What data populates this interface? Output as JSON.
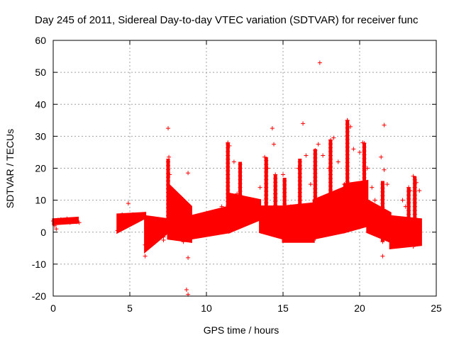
{
  "chart_data": {
    "type": "scatter",
    "title": "Day 245 of 2011, Sidereal Day-to-day VTEC variation (SDTVAR) for receiver func",
    "xlabel": "GPS time / hours",
    "ylabel": "SDTVAR / TECUs",
    "xlim": [
      0,
      25
    ],
    "ylim": [
      -20,
      60
    ],
    "xticks": [
      "0",
      "5",
      "10",
      "15",
      "20",
      "25"
    ],
    "yticks": [
      "-20",
      "-10",
      "0",
      "10",
      "20",
      "30",
      "40",
      "50",
      "60"
    ],
    "grid": true,
    "marker": "+",
    "color": "#ff0000",
    "series": [
      {
        "name": "SDTVAR",
        "points": [
          [
            0.0,
            3.5
          ],
          [
            0.1,
            2.0
          ],
          [
            0.2,
            1.0
          ],
          [
            0.3,
            3.8
          ],
          [
            0.5,
            4.0
          ],
          [
            0.7,
            3.5
          ],
          [
            0.9,
            4.2
          ],
          [
            1.1,
            3.0
          ],
          [
            1.3,
            3.9
          ],
          [
            1.5,
            3.2
          ],
          [
            1.7,
            3.0
          ],
          [
            4.2,
            0.5
          ],
          [
            4.3,
            2.5
          ],
          [
            4.5,
            5.5
          ],
          [
            4.8,
            5.0
          ],
          [
            4.9,
            9.0
          ],
          [
            5.2,
            5.5
          ],
          [
            5.5,
            5.0
          ],
          [
            5.8,
            4.8
          ],
          [
            6.0,
            -4.0
          ],
          [
            6.0,
            -7.5
          ],
          [
            6.2,
            -3.0
          ],
          [
            6.5,
            4.0
          ],
          [
            6.8,
            2.0
          ],
          [
            7.0,
            0.5
          ],
          [
            7.2,
            -1.5
          ],
          [
            7.2,
            -2.5
          ],
          [
            7.5,
            32.5
          ],
          [
            7.55,
            23.5
          ],
          [
            7.6,
            18.0
          ],
          [
            7.7,
            12.0
          ],
          [
            7.9,
            8.0
          ],
          [
            8.2,
            -0.5
          ],
          [
            8.5,
            -3.0
          ],
          [
            8.6,
            8.0
          ],
          [
            8.7,
            -18.0
          ],
          [
            8.8,
            -19.5
          ],
          [
            8.8,
            -8.0
          ],
          [
            8.8,
            18.5
          ],
          [
            9.0,
            2.0
          ],
          [
            9.5,
            4.0
          ],
          [
            10.0,
            3.0
          ],
          [
            10.5,
            6.0
          ],
          [
            11.0,
            8.0
          ],
          [
            11.4,
            28.0
          ],
          [
            11.5,
            27.0
          ],
          [
            11.8,
            22.0
          ],
          [
            12.0,
            12.0
          ],
          [
            12.5,
            10.0
          ],
          [
            13.0,
            5.0
          ],
          [
            13.5,
            14.0
          ],
          [
            13.8,
            23.5
          ],
          [
            14.0,
            20.0
          ],
          [
            14.3,
            32.5
          ],
          [
            14.4,
            27.5
          ],
          [
            14.5,
            12.0
          ],
          [
            15.0,
            18.0
          ],
          [
            15.5,
            8.0
          ],
          [
            16.0,
            20.0
          ],
          [
            16.3,
            34.0
          ],
          [
            16.5,
            24.0
          ],
          [
            16.8,
            15.0
          ],
          [
            17.0,
            6.0
          ],
          [
            17.3,
            27.5
          ],
          [
            17.4,
            53.0
          ],
          [
            17.6,
            24.0
          ],
          [
            18.0,
            20.0
          ],
          [
            18.3,
            29.5
          ],
          [
            18.6,
            22.0
          ],
          [
            19.0,
            15.0
          ],
          [
            19.2,
            35.0
          ],
          [
            19.4,
            33.0
          ],
          [
            19.6,
            26.0
          ],
          [
            19.8,
            15.0
          ],
          [
            20.0,
            25.0
          ],
          [
            20.2,
            28.0
          ],
          [
            20.5,
            20.0
          ],
          [
            20.8,
            14.0
          ],
          [
            21.0,
            10.0
          ],
          [
            21.4,
            23.5
          ],
          [
            21.5,
            -7.5
          ],
          [
            21.6,
            33.5
          ],
          [
            21.6,
            19.5
          ],
          [
            21.8,
            15.0
          ],
          [
            22.0,
            5.0
          ],
          [
            22.3,
            -4.0
          ],
          [
            22.5,
            0.0
          ],
          [
            22.8,
            10.0
          ],
          [
            23.0,
            8.0
          ],
          [
            23.3,
            13.0
          ],
          [
            23.5,
            17.5
          ],
          [
            23.7,
            15.5
          ],
          [
            23.9,
            13.0
          ],
          [
            23.9,
            -3.5
          ],
          [
            23.5,
            -4.5
          ],
          [
            23.0,
            -2.0
          ]
        ]
      }
    ],
    "bands": [
      {
        "x": [
          0.0,
          1.6
        ],
        "low": [
          2.5,
          3.0
        ],
        "high": [
          4.0,
          4.5
        ]
      },
      {
        "x": [
          4.2,
          6.0
        ],
        "low": [
          0.0,
          4.5
        ],
        "high": [
          5.5,
          6.0
        ]
      },
      {
        "x": [
          6.0,
          7.5
        ],
        "low": [
          -6.0,
          0.0
        ],
        "high": [
          5.0,
          4.0
        ]
      },
      {
        "x": [
          7.5,
          9.0
        ],
        "low": [
          -2.0,
          -3.0
        ],
        "high": [
          15.0,
          8.0
        ]
      },
      {
        "x": [
          9.0,
          11.5
        ],
        "low": [
          -2.0,
          0.0
        ],
        "high": [
          5.0,
          8.0
        ]
      },
      {
        "x": [
          11.5,
          13.5
        ],
        "low": [
          0.0,
          4.0
        ],
        "high": [
          12.0,
          10.0
        ]
      },
      {
        "x": [
          13.5,
          15.0
        ],
        "low": [
          0.0,
          -2.0
        ],
        "high": [
          8.0,
          8.0
        ]
      },
      {
        "x": [
          15.0,
          17.0
        ],
        "low": [
          -3.0,
          -3.0
        ],
        "high": [
          8.0,
          9.0
        ]
      },
      {
        "x": [
          17.0,
          19.0
        ],
        "low": [
          -2.0,
          0.0
        ],
        "high": [
          10.0,
          14.0
        ]
      },
      {
        "x": [
          19.0,
          20.5
        ],
        "low": [
          0.0,
          2.0
        ],
        "high": [
          15.0,
          16.0
        ]
      },
      {
        "x": [
          20.5,
          22.0
        ],
        "low": [
          0.0,
          -3.0
        ],
        "high": [
          10.0,
          6.0
        ]
      },
      {
        "x": [
          22.0,
          24.0
        ],
        "low": [
          -5.0,
          -4.0
        ],
        "high": [
          5.0,
          4.0
        ]
      }
    ],
    "spikes": [
      {
        "x": 7.5,
        "from": 4,
        "to": 23
      },
      {
        "x": 11.4,
        "from": 6,
        "to": 28
      },
      {
        "x": 12.2,
        "from": 8,
        "to": 22
      },
      {
        "x": 13.9,
        "from": 2,
        "to": 23.5
      },
      {
        "x": 14.5,
        "from": 0,
        "to": 18
      },
      {
        "x": 15.1,
        "from": -2,
        "to": 17
      },
      {
        "x": 16.1,
        "from": -2,
        "to": 23
      },
      {
        "x": 17.1,
        "from": -2,
        "to": 26
      },
      {
        "x": 18.1,
        "from": 0,
        "to": 29
      },
      {
        "x": 19.2,
        "from": 5,
        "to": 35
      },
      {
        "x": 20.3,
        "from": 5,
        "to": 28
      },
      {
        "x": 21.5,
        "from": -3,
        "to": 16
      },
      {
        "x": 23.2,
        "from": -4,
        "to": 14
      },
      {
        "x": 23.6,
        "from": -4,
        "to": 17.5
      }
    ]
  }
}
